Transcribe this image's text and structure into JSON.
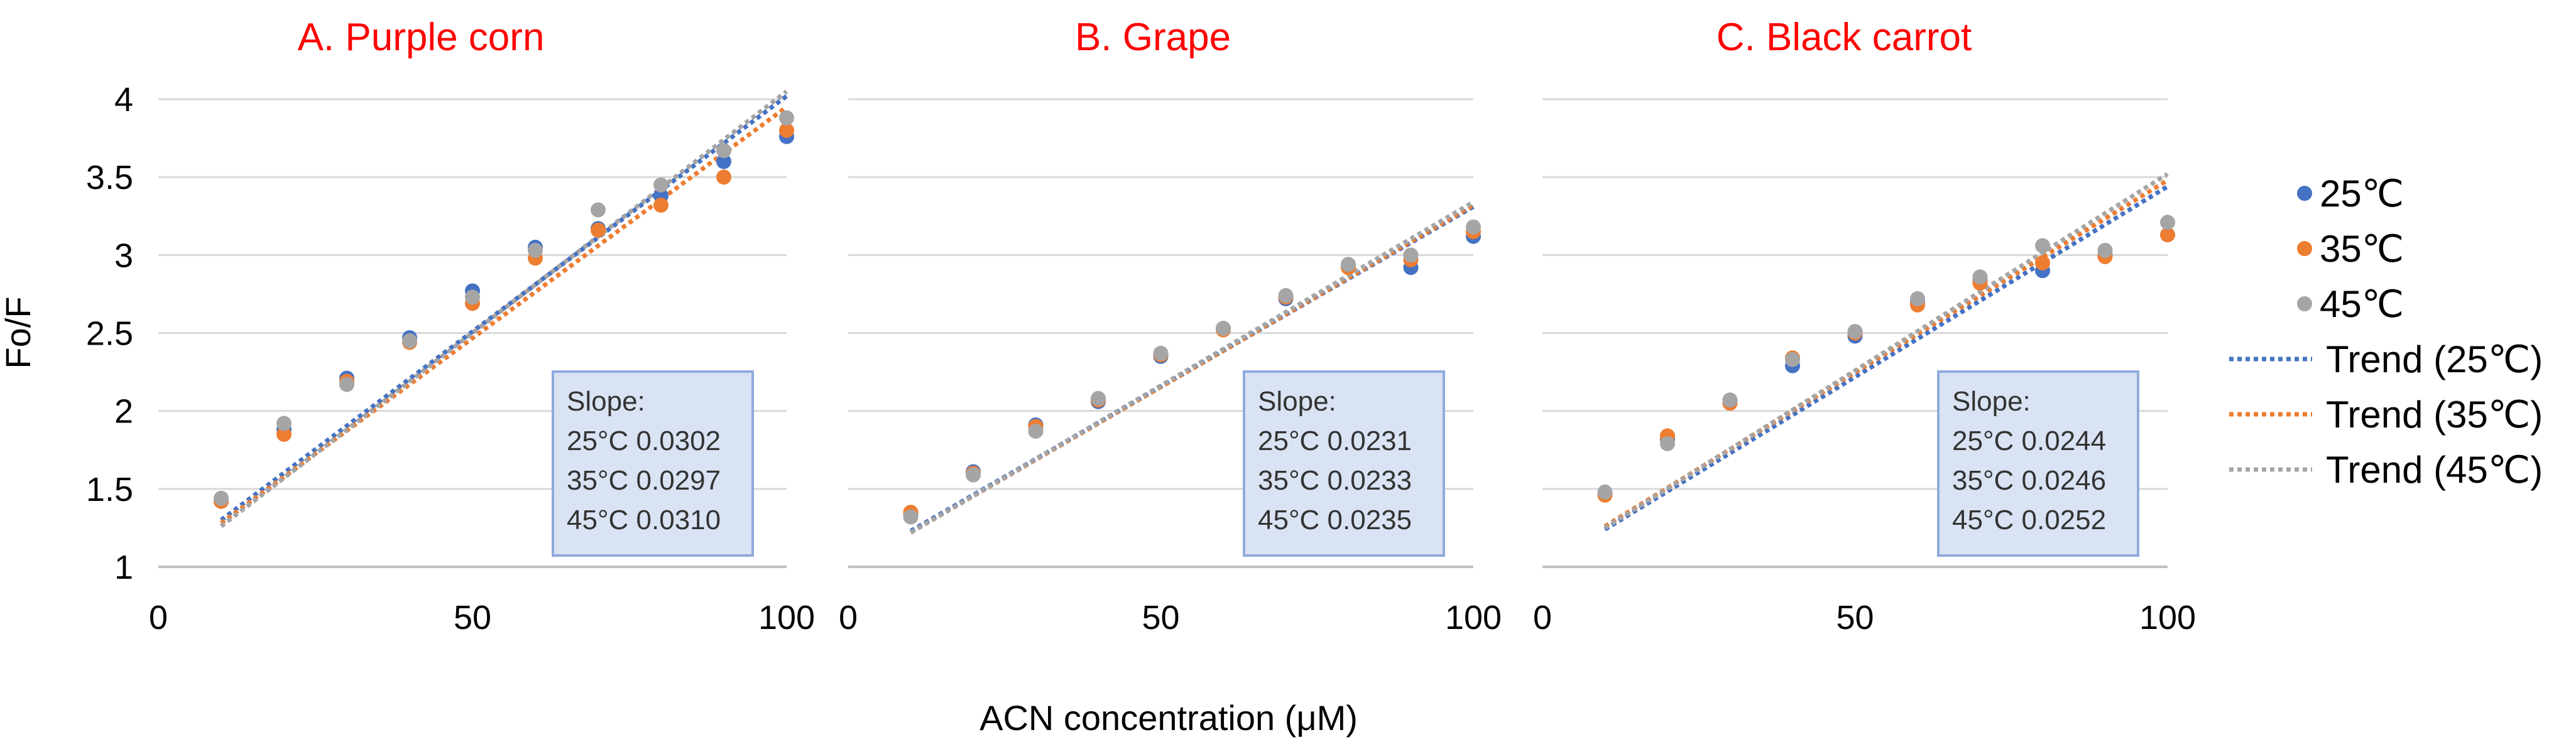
{
  "figure": {
    "ylabel": "Fo/F",
    "xlabel": "ACN concentration (μM)",
    "legend": [
      {
        "label": "25℃",
        "kind": "marker",
        "color": "#4472C4"
      },
      {
        "label": "35℃",
        "kind": "marker",
        "color": "#ED7D31"
      },
      {
        "label": "45℃",
        "kind": "marker",
        "color": "#A5A5A5"
      },
      {
        "label": "Trend (25℃)",
        "kind": "line",
        "color": "#4472C4"
      },
      {
        "label": "Trend (35℃)",
        "kind": "line",
        "color": "#ED7D31"
      },
      {
        "label": "Trend (45℃)",
        "kind": "line",
        "color": "#A5A5A5"
      }
    ],
    "title_color": "#FF0000"
  },
  "chart_data": [
    {
      "type": "scatter",
      "title": "A. Purple corn",
      "xlim": [
        0,
        100
      ],
      "ylim": [
        1,
        4
      ],
      "xticks": [
        "0",
        "50",
        "100"
      ],
      "yticks": [
        "1",
        "1.5",
        "2",
        "2.5",
        "3",
        "3.5",
        "4"
      ],
      "x": [
        10,
        20,
        30,
        40,
        50,
        60,
        70,
        80,
        90,
        100
      ],
      "series": [
        {
          "name": "25℃",
          "color": "#4472C4",
          "values": [
            1.42,
            1.88,
            2.21,
            2.47,
            2.77,
            3.05,
            3.17,
            3.38,
            3.6,
            3.76
          ]
        },
        {
          "name": "35℃",
          "color": "#ED7D31",
          "values": [
            1.42,
            1.85,
            2.19,
            2.44,
            2.69,
            2.98,
            3.16,
            3.32,
            3.5,
            3.8
          ]
        },
        {
          "name": "45℃",
          "color": "#A5A5A5",
          "values": [
            1.44,
            1.92,
            2.17,
            2.45,
            2.73,
            3.03,
            3.29,
            3.45,
            3.67,
            3.88
          ]
        }
      ],
      "trendlines": [
        {
          "name": "Trend (25℃)",
          "color": "#4472C4",
          "slope": 0.0302,
          "x": [
            10,
            100
          ],
          "y": [
            1.3,
            4.02
          ]
        },
        {
          "name": "Trend (35℃)",
          "color": "#ED7D31",
          "slope": 0.0297,
          "x": [
            10,
            100
          ],
          "y": [
            1.28,
            3.95
          ]
        },
        {
          "name": "Trend (45℃)",
          "color": "#A5A5A5",
          "slope": 0.031,
          "x": [
            10,
            100
          ],
          "y": [
            1.26,
            4.05
          ]
        }
      ],
      "annotation": [
        "Slope:",
        "25°C 0.0302",
        "35°C 0.0297",
        "45°C 0.0310"
      ]
    },
    {
      "type": "scatter",
      "title": "B. Grape",
      "xlim": [
        0,
        100
      ],
      "ylim": [
        1,
        4
      ],
      "xticks": [
        "0",
        "50",
        "100"
      ],
      "yticks": [],
      "x": [
        10,
        20,
        30,
        40,
        50,
        60,
        70,
        80,
        90,
        100
      ],
      "series": [
        {
          "name": "25℃",
          "color": "#4472C4",
          "values": [
            1.33,
            1.61,
            1.91,
            2.06,
            2.35,
            2.53,
            2.72,
            2.93,
            2.92,
            3.12
          ]
        },
        {
          "name": "35℃",
          "color": "#ED7D31",
          "values": [
            1.35,
            1.6,
            1.9,
            2.07,
            2.36,
            2.52,
            2.73,
            2.92,
            2.97,
            3.15
          ]
        },
        {
          "name": "45℃",
          "color": "#A5A5A5",
          "values": [
            1.32,
            1.59,
            1.87,
            2.08,
            2.37,
            2.53,
            2.74,
            2.94,
            3.0,
            3.18
          ]
        }
      ],
      "trendlines": [
        {
          "name": "Trend (25℃)",
          "color": "#4472C4",
          "slope": 0.0231,
          "x": [
            10,
            100
          ],
          "y": [
            1.23,
            3.31
          ]
        },
        {
          "name": "Trend (35℃)",
          "color": "#ED7D31",
          "slope": 0.0233,
          "x": [
            10,
            100
          ],
          "y": [
            1.22,
            3.32
          ]
        },
        {
          "name": "Trend (45℃)",
          "color": "#A5A5A5",
          "slope": 0.0235,
          "x": [
            10,
            100
          ],
          "y": [
            1.22,
            3.34
          ]
        }
      ],
      "annotation": [
        "Slope:",
        "25°C 0.0231",
        "35°C 0.0233",
        "45°C 0.0235"
      ]
    },
    {
      "type": "scatter",
      "title": "C. Black carrot",
      "xlim": [
        0,
        100
      ],
      "ylim": [
        1,
        4
      ],
      "xticks": [
        "0",
        "50",
        "100"
      ],
      "yticks": [],
      "x": [
        10,
        20,
        30,
        40,
        50,
        60,
        70,
        80,
        90,
        100
      ],
      "series": [
        {
          "name": "25℃",
          "color": "#4472C4",
          "values": [
            1.47,
            1.82,
            2.06,
            2.29,
            2.48,
            2.7,
            2.84,
            2.9,
            3.0,
            3.13
          ]
        },
        {
          "name": "35℃",
          "color": "#ED7D31",
          "values": [
            1.46,
            1.84,
            2.05,
            2.34,
            2.5,
            2.68,
            2.82,
            2.95,
            2.99,
            3.13
          ]
        },
        {
          "name": "45℃",
          "color": "#A5A5A5",
          "values": [
            1.48,
            1.79,
            2.07,
            2.33,
            2.51,
            2.72,
            2.86,
            3.06,
            3.03,
            3.21
          ]
        }
      ],
      "trendlines": [
        {
          "name": "Trend (25℃)",
          "color": "#4472C4",
          "slope": 0.0244,
          "x": [
            10,
            100
          ],
          "y": [
            1.24,
            3.44
          ]
        },
        {
          "name": "Trend (35℃)",
          "color": "#ED7D31",
          "slope": 0.0246,
          "x": [
            10,
            100
          ],
          "y": [
            1.26,
            3.48
          ]
        },
        {
          "name": "Trend (45℃)",
          "color": "#A5A5A5",
          "slope": 0.0252,
          "x": [
            10,
            100
          ],
          "y": [
            1.25,
            3.52
          ]
        }
      ],
      "annotation": [
        "Slope:",
        "25°C 0.0244",
        "35°C 0.0246",
        "45°C 0.0252"
      ]
    }
  ]
}
